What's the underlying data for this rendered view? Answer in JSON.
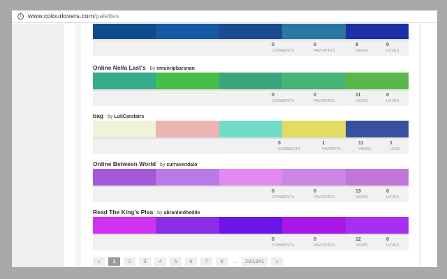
{
  "browser": {
    "url_host": "www.colourlovers.com",
    "url_path": "/palettes"
  },
  "palettes": [
    {
      "title": "",
      "author": "",
      "colors": [
        "#0f4a8a",
        "#1557a3",
        "#1b4a8e",
        "#2a78a1",
        "#1b2fa6"
      ],
      "stats": {
        "comments": "0",
        "comments_label": "COMMENTS",
        "favorites": "0",
        "favorites_label": "FAVORITES",
        "views": "8",
        "views_label": "VIEWS",
        "loves": "0",
        "loves_label": "LOVES"
      }
    },
    {
      "title": "Online Nella Last's",
      "by": "by",
      "author": "emunripbarsnan",
      "colors": [
        "#35ab8a",
        "#46bf48",
        "#3aa67c",
        "#45b678",
        "#58b84a"
      ],
      "stats": {
        "comments": "0",
        "comments_label": "COMMENTS",
        "favorites": "0",
        "favorites_label": "FAVORITES",
        "views": "11",
        "views_label": "VIEWS",
        "loves": "0",
        "loves_label": "LOVES"
      }
    },
    {
      "title": "bag",
      "by": "by",
      "author": "LuliCarstairs",
      "colors": [
        "#f2f2da",
        "#ecb4b2",
        "#72dccb",
        "#e4dc62",
        "#37519e"
      ],
      "stats": {
        "comments": "0",
        "comments_label": "COMMENTS",
        "favorites": "1",
        "favorites_label": "FAVORITE",
        "views": "11",
        "views_label": "VIEWS",
        "loves": "1",
        "loves_label": "LOVE"
      }
    },
    {
      "title": "Online Between World",
      "by": "by",
      "author": "curravendalo",
      "colors": [
        "#a45ad8",
        "#b87ae6",
        "#e38af2",
        "#cc86e4",
        "#bf76d8"
      ],
      "stats": {
        "comments": "0",
        "comments_label": "COMMENTS",
        "favorites": "0",
        "favorites_label": "FAVORITES",
        "views": "13",
        "views_label": "VIEWS",
        "loves": "0",
        "loves_label": "LOVES"
      }
    },
    {
      "title": "Read The King's Plea",
      "by": "by",
      "author": "abranlindhedde",
      "colors": [
        "#d032f2",
        "#8a2ee6",
        "#6a16e6",
        "#a818e8",
        "#a82ef0"
      ],
      "stats": {
        "comments": "0",
        "comments_label": "COMMENTS",
        "favorites": "0",
        "favorites_label": "FAVORITES",
        "views": "12",
        "views_label": "VIEWS",
        "loves": "0",
        "loves_label": "LOVES"
      }
    }
  ],
  "pagination": {
    "prev": "«",
    "pages": [
      "1",
      "2",
      "3",
      "4",
      "5",
      "6",
      "7",
      "8"
    ],
    "current": "1",
    "ellipsis": "...",
    "last": "293,841",
    "next": "»"
  }
}
